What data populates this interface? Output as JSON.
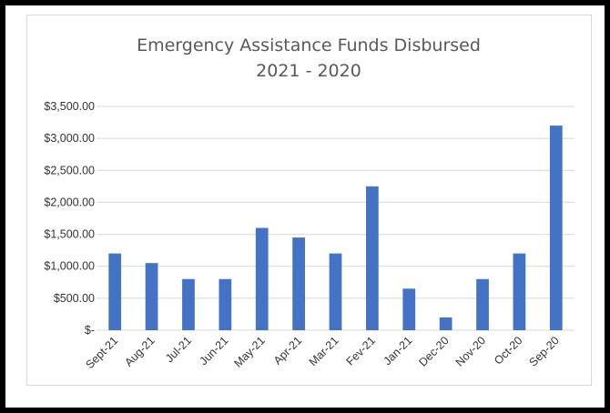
{
  "chart_data": {
    "type": "bar",
    "title": "Emergency Assistance Funds Disbursed",
    "subtitle": "2021 - 2020",
    "categories": [
      "Sept-21",
      "Aug-21",
      "Jul-21",
      "Jun-21",
      "May-21",
      "Apr-21",
      "Mar-21",
      "Fev-21",
      "Jan-21",
      "Dec-20",
      "Nov-20",
      "Oct-20",
      "Sep-20"
    ],
    "values": [
      1200,
      1050,
      800,
      800,
      1600,
      1450,
      1200,
      2250,
      650,
      200,
      800,
      1200,
      3200
    ],
    "ylim": [
      0,
      3500
    ],
    "yticks": [
      {
        "value": 0,
        "label": "$-"
      },
      {
        "value": 500,
        "label": "$500.00"
      },
      {
        "value": 1000,
        "label": "$1,000.00"
      },
      {
        "value": 1500,
        "label": "$1,500.00"
      },
      {
        "value": 2000,
        "label": "$2,000.00"
      },
      {
        "value": 2500,
        "label": "$2,500.00"
      },
      {
        "value": 3000,
        "label": "$3,000.00"
      },
      {
        "value": 3500,
        "label": "$3,500.00"
      }
    ],
    "grid": true,
    "legend": "none",
    "bar_color": "#4472c4",
    "grid_color": "#d9d9d9"
  }
}
